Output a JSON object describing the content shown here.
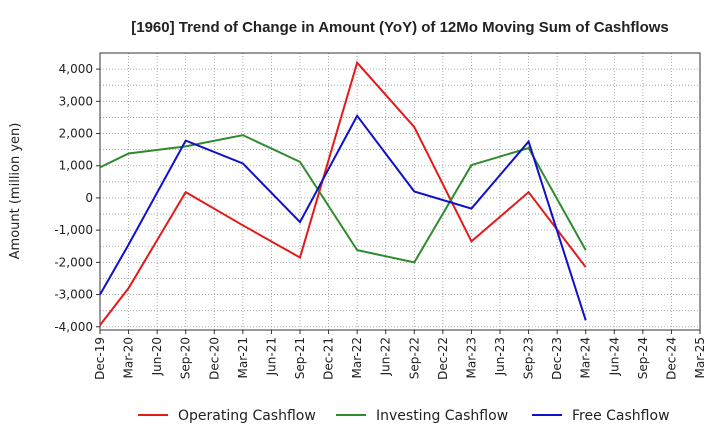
{
  "chart_data": {
    "type": "line",
    "title": "[1960]  Trend of Change in Amount (YoY) of 12Mo Moving Sum of Cashflows",
    "xlabel": "",
    "ylabel": "Amount (million yen)",
    "ylim": [
      -4100,
      4500
    ],
    "yticks": [
      4000,
      3000,
      2000,
      1000,
      0,
      -1000,
      -2000,
      -3000,
      -4000
    ],
    "ytick_labels": [
      "4,000",
      "3,000",
      "2,000",
      "1,000",
      "0",
      "-1,000",
      "-2,000",
      "-3,000",
      "-4,000"
    ],
    "categories": [
      "Dec-19",
      "Mar-20",
      "Jun-20",
      "Sep-20",
      "Dec-20",
      "Mar-21",
      "Jun-21",
      "Sep-21",
      "Dec-21",
      "Mar-22",
      "Jun-22",
      "Sep-22",
      "Dec-22",
      "Mar-23",
      "Jun-23",
      "Sep-23",
      "Dec-23",
      "Mar-24",
      "Jun-24",
      "Sep-24",
      "Dec-24",
      "Mar-25"
    ],
    "grid": true,
    "legend_position": "bottom",
    "series": [
      {
        "name": "Operating Cashflow",
        "color": "#e31a1c",
        "points": [
          {
            "x": "Dec-19",
            "y": -3950
          },
          {
            "x": "Mar-20",
            "y": -2800
          },
          {
            "x": "Sep-20",
            "y": 180
          },
          {
            "x": "Mar-21",
            "y": -850
          },
          {
            "x": "Sep-21",
            "y": -1850
          },
          {
            "x": "Mar-22",
            "y": 4200
          },
          {
            "x": "Sep-22",
            "y": 2200
          },
          {
            "x": "Mar-23",
            "y": -1350
          },
          {
            "x": "Sep-23",
            "y": 180
          },
          {
            "x": "Mar-24",
            "y": -2150
          }
        ]
      },
      {
        "name": "Investing Cashflow",
        "color": "#2e8b2e",
        "points": [
          {
            "x": "Dec-19",
            "y": 950
          },
          {
            "x": "Mar-20",
            "y": 1380
          },
          {
            "x": "Sep-20",
            "y": 1600
          },
          {
            "x": "Mar-21",
            "y": 1950
          },
          {
            "x": "Sep-21",
            "y": 1120
          },
          {
            "x": "Mar-22",
            "y": -1620
          },
          {
            "x": "Sep-22",
            "y": -2000
          },
          {
            "x": "Mar-23",
            "y": 1020
          },
          {
            "x": "Sep-23",
            "y": 1550
          },
          {
            "x": "Mar-24",
            "y": -1620
          }
        ]
      },
      {
        "name": "Free Cashflow",
        "color": "#1010cc",
        "points": [
          {
            "x": "Dec-19",
            "y": -3000
          },
          {
            "x": "Mar-20",
            "y": -1450
          },
          {
            "x": "Sep-20",
            "y": 1780
          },
          {
            "x": "Mar-21",
            "y": 1070
          },
          {
            "x": "Sep-21",
            "y": -750
          },
          {
            "x": "Mar-22",
            "y": 2550
          },
          {
            "x": "Sep-22",
            "y": 200
          },
          {
            "x": "Mar-23",
            "y": -330
          },
          {
            "x": "Sep-23",
            "y": 1750
          },
          {
            "x": "Mar-24",
            "y": -3800
          }
        ]
      }
    ]
  }
}
